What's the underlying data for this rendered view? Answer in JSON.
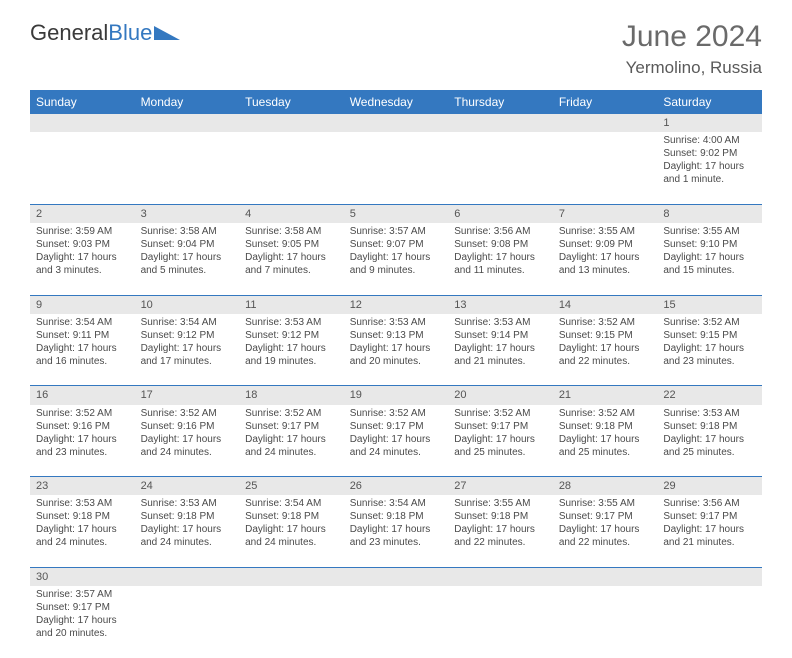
{
  "brand": {
    "part1": "General",
    "part2": "Blue"
  },
  "title": "June 2024",
  "location": "Yermolino, Russia",
  "colors": {
    "header_bg": "#3478c0",
    "header_text": "#ffffff",
    "daynum_bg": "#e8e8e8",
    "border": "#3478c0",
    "text": "#4a4a4a",
    "brand_blue": "#3478c0"
  },
  "weekdays": [
    "Sunday",
    "Monday",
    "Tuesday",
    "Wednesday",
    "Thursday",
    "Friday",
    "Saturday"
  ],
  "weeks": [
    {
      "nums": [
        "",
        "",
        "",
        "",
        "",
        "",
        "1"
      ],
      "cells": [
        [],
        [],
        [],
        [],
        [],
        [],
        [
          "Sunrise: 4:00 AM",
          "Sunset: 9:02 PM",
          "Daylight: 17 hours",
          "and 1 minute."
        ]
      ]
    },
    {
      "nums": [
        "2",
        "3",
        "4",
        "5",
        "6",
        "7",
        "8"
      ],
      "cells": [
        [
          "Sunrise: 3:59 AM",
          "Sunset: 9:03 PM",
          "Daylight: 17 hours",
          "and 3 minutes."
        ],
        [
          "Sunrise: 3:58 AM",
          "Sunset: 9:04 PM",
          "Daylight: 17 hours",
          "and 5 minutes."
        ],
        [
          "Sunrise: 3:58 AM",
          "Sunset: 9:05 PM",
          "Daylight: 17 hours",
          "and 7 minutes."
        ],
        [
          "Sunrise: 3:57 AM",
          "Sunset: 9:07 PM",
          "Daylight: 17 hours",
          "and 9 minutes."
        ],
        [
          "Sunrise: 3:56 AM",
          "Sunset: 9:08 PM",
          "Daylight: 17 hours",
          "and 11 minutes."
        ],
        [
          "Sunrise: 3:55 AM",
          "Sunset: 9:09 PM",
          "Daylight: 17 hours",
          "and 13 minutes."
        ],
        [
          "Sunrise: 3:55 AM",
          "Sunset: 9:10 PM",
          "Daylight: 17 hours",
          "and 15 minutes."
        ]
      ]
    },
    {
      "nums": [
        "9",
        "10",
        "11",
        "12",
        "13",
        "14",
        "15"
      ],
      "cells": [
        [
          "Sunrise: 3:54 AM",
          "Sunset: 9:11 PM",
          "Daylight: 17 hours",
          "and 16 minutes."
        ],
        [
          "Sunrise: 3:54 AM",
          "Sunset: 9:12 PM",
          "Daylight: 17 hours",
          "and 17 minutes."
        ],
        [
          "Sunrise: 3:53 AM",
          "Sunset: 9:12 PM",
          "Daylight: 17 hours",
          "and 19 minutes."
        ],
        [
          "Sunrise: 3:53 AM",
          "Sunset: 9:13 PM",
          "Daylight: 17 hours",
          "and 20 minutes."
        ],
        [
          "Sunrise: 3:53 AM",
          "Sunset: 9:14 PM",
          "Daylight: 17 hours",
          "and 21 minutes."
        ],
        [
          "Sunrise: 3:52 AM",
          "Sunset: 9:15 PM",
          "Daylight: 17 hours",
          "and 22 minutes."
        ],
        [
          "Sunrise: 3:52 AM",
          "Sunset: 9:15 PM",
          "Daylight: 17 hours",
          "and 23 minutes."
        ]
      ]
    },
    {
      "nums": [
        "16",
        "17",
        "18",
        "19",
        "20",
        "21",
        "22"
      ],
      "cells": [
        [
          "Sunrise: 3:52 AM",
          "Sunset: 9:16 PM",
          "Daylight: 17 hours",
          "and 23 minutes."
        ],
        [
          "Sunrise: 3:52 AM",
          "Sunset: 9:16 PM",
          "Daylight: 17 hours",
          "and 24 minutes."
        ],
        [
          "Sunrise: 3:52 AM",
          "Sunset: 9:17 PM",
          "Daylight: 17 hours",
          "and 24 minutes."
        ],
        [
          "Sunrise: 3:52 AM",
          "Sunset: 9:17 PM",
          "Daylight: 17 hours",
          "and 24 minutes."
        ],
        [
          "Sunrise: 3:52 AM",
          "Sunset: 9:17 PM",
          "Daylight: 17 hours",
          "and 25 minutes."
        ],
        [
          "Sunrise: 3:52 AM",
          "Sunset: 9:18 PM",
          "Daylight: 17 hours",
          "and 25 minutes."
        ],
        [
          "Sunrise: 3:53 AM",
          "Sunset: 9:18 PM",
          "Daylight: 17 hours",
          "and 25 minutes."
        ]
      ]
    },
    {
      "nums": [
        "23",
        "24",
        "25",
        "26",
        "27",
        "28",
        "29"
      ],
      "cells": [
        [
          "Sunrise: 3:53 AM",
          "Sunset: 9:18 PM",
          "Daylight: 17 hours",
          "and 24 minutes."
        ],
        [
          "Sunrise: 3:53 AM",
          "Sunset: 9:18 PM",
          "Daylight: 17 hours",
          "and 24 minutes."
        ],
        [
          "Sunrise: 3:54 AM",
          "Sunset: 9:18 PM",
          "Daylight: 17 hours",
          "and 24 minutes."
        ],
        [
          "Sunrise: 3:54 AM",
          "Sunset: 9:18 PM",
          "Daylight: 17 hours",
          "and 23 minutes."
        ],
        [
          "Sunrise: 3:55 AM",
          "Sunset: 9:18 PM",
          "Daylight: 17 hours",
          "and 22 minutes."
        ],
        [
          "Sunrise: 3:55 AM",
          "Sunset: 9:17 PM",
          "Daylight: 17 hours",
          "and 22 minutes."
        ],
        [
          "Sunrise: 3:56 AM",
          "Sunset: 9:17 PM",
          "Daylight: 17 hours",
          "and 21 minutes."
        ]
      ]
    },
    {
      "nums": [
        "30",
        "",
        "",
        "",
        "",
        "",
        ""
      ],
      "cells": [
        [
          "Sunrise: 3:57 AM",
          "Sunset: 9:17 PM",
          "Daylight: 17 hours",
          "and 20 minutes."
        ],
        [],
        [],
        [],
        [],
        [],
        []
      ]
    }
  ]
}
